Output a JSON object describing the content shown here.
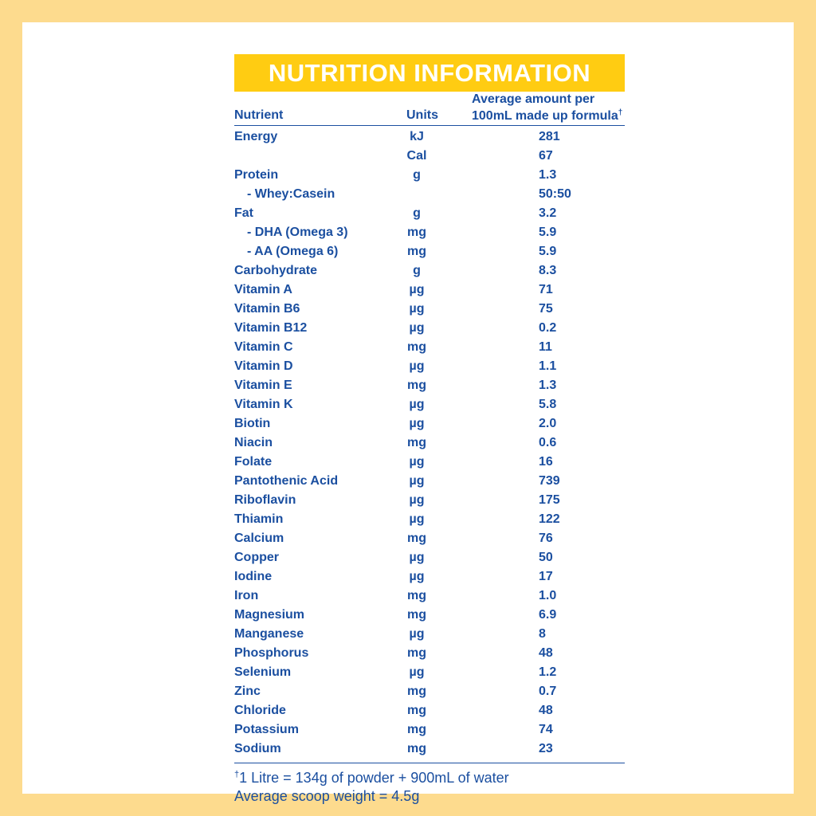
{
  "title": "NUTRITION INFORMATION",
  "headers": {
    "nutrient": "Nutrient",
    "units": "Units",
    "average_line1": "Average amount per",
    "average_line2": "100mL made up formula",
    "dagger": "†"
  },
  "rows": [
    {
      "nutrient": "Energy",
      "unit": "kJ",
      "value": "281",
      "sub": false
    },
    {
      "nutrient": "",
      "unit": "Cal",
      "value": "67",
      "sub": false
    },
    {
      "nutrient": "Protein",
      "unit": "g",
      "value": "1.3",
      "sub": false
    },
    {
      "nutrient": "- Whey:Casein",
      "unit": "",
      "value": "50:50",
      "sub": true
    },
    {
      "nutrient": "Fat",
      "unit": "g",
      "value": "3.2",
      "sub": false
    },
    {
      "nutrient": "- DHA (Omega 3)",
      "unit": "mg",
      "value": "5.9",
      "sub": true
    },
    {
      "nutrient": "- AA (Omega 6)",
      "unit": "mg",
      "value": "5.9",
      "sub": true
    },
    {
      "nutrient": "Carbohydrate",
      "unit": "g",
      "value": "8.3",
      "sub": false
    },
    {
      "nutrient": "Vitamin A",
      "unit": "µg",
      "value": "71",
      "sub": false
    },
    {
      "nutrient": "Vitamin B6",
      "unit": "µg",
      "value": "75",
      "sub": false
    },
    {
      "nutrient": "Vitamin B12",
      "unit": "µg",
      "value": "0.2",
      "sub": false
    },
    {
      "nutrient": "Vitamin C",
      "unit": "mg",
      "value": "11",
      "sub": false
    },
    {
      "nutrient": "Vitamin D",
      "unit": "µg",
      "value": "1.1",
      "sub": false
    },
    {
      "nutrient": "Vitamin E",
      "unit": "mg",
      "value": "1.3",
      "sub": false
    },
    {
      "nutrient": "Vitamin K",
      "unit": "µg",
      "value": "5.8",
      "sub": false
    },
    {
      "nutrient": "Biotin",
      "unit": "µg",
      "value": "2.0",
      "sub": false
    },
    {
      "nutrient": "Niacin",
      "unit": "mg",
      "value": "0.6",
      "sub": false
    },
    {
      "nutrient": "Folate",
      "unit": "µg",
      "value": "16",
      "sub": false
    },
    {
      "nutrient": "Pantothenic Acid",
      "unit": "µg",
      "value": "739",
      "sub": false
    },
    {
      "nutrient": "Riboflavin",
      "unit": "µg",
      "value": "175",
      "sub": false
    },
    {
      "nutrient": "Thiamin",
      "unit": "µg",
      "value": "122",
      "sub": false
    },
    {
      "nutrient": "Calcium",
      "unit": "mg",
      "value": "76",
      "sub": false
    },
    {
      "nutrient": "Copper",
      "unit": "µg",
      "value": "50",
      "sub": false
    },
    {
      "nutrient": "Iodine",
      "unit": "µg",
      "value": "17",
      "sub": false
    },
    {
      "nutrient": "Iron",
      "unit": "mg",
      "value": "1.0",
      "sub": false
    },
    {
      "nutrient": "Magnesium",
      "unit": "mg",
      "value": "6.9",
      "sub": false
    },
    {
      "nutrient": "Manganese",
      "unit": "µg",
      "value": "8",
      "sub": false
    },
    {
      "nutrient": "Phosphorus",
      "unit": "mg",
      "value": "48",
      "sub": false
    },
    {
      "nutrient": "Selenium",
      "unit": "µg",
      "value": "1.2",
      "sub": false
    },
    {
      "nutrient": "Zinc",
      "unit": "mg",
      "value": "0.7",
      "sub": false
    },
    {
      "nutrient": "Chloride",
      "unit": "mg",
      "value": "48",
      "sub": false
    },
    {
      "nutrient": "Potassium",
      "unit": "mg",
      "value": "74",
      "sub": false
    },
    {
      "nutrient": "Sodium",
      "unit": "mg",
      "value": "23",
      "sub": false
    }
  ],
  "footnotes": {
    "dagger": "†",
    "line1": "1 Litre = 134g of powder + 900mL of water",
    "line2": "Average scoop weight = 4.5g"
  },
  "colors": {
    "outer_border": "#FDDB8E",
    "banner": "#FFCC12",
    "text": "#1B4FA0"
  }
}
